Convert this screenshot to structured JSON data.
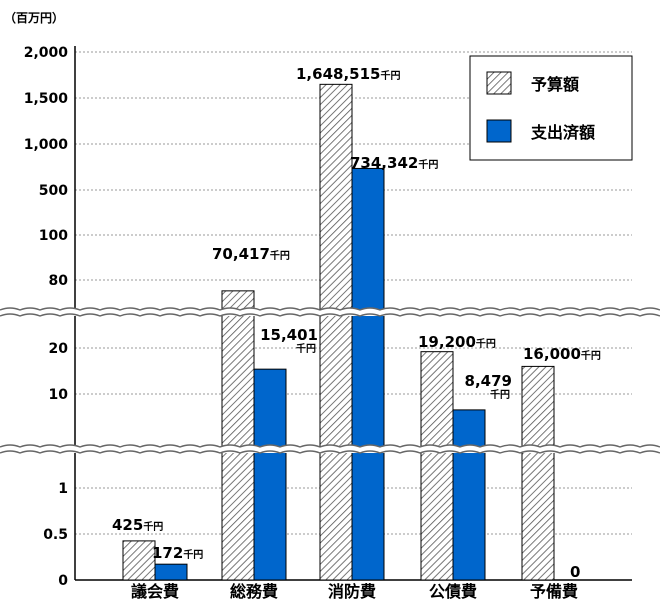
{
  "chart_data": {
    "type": "bar",
    "ylabel": "（百万円）",
    "y_ticks": [
      "2,000",
      "1,500",
      "1,000",
      "500",
      "100",
      "80",
      "20",
      "10",
      "1",
      "0.5",
      "0"
    ],
    "categories": [
      "議会費",
      "総務費",
      "消防費",
      "公債費",
      "予備費"
    ],
    "series": [
      {
        "name": "予算額",
        "values": [
          425,
          70417,
          1648515,
          19200,
          16000
        ]
      },
      {
        "name": "支出済額",
        "values": [
          172,
          15401,
          734342,
          8479,
          0
        ]
      }
    ],
    "value_labels": {
      "budget": [
        "425",
        "70,417",
        "1,648,515",
        "19,200",
        "16,000"
      ],
      "spent": [
        "172",
        "15,401",
        "734,342",
        "8,479",
        "0"
      ]
    },
    "value_unit": "千円",
    "legend": {
      "position": "top-right"
    },
    "grid": true
  },
  "colors": {
    "spent_fill": "#0066cc",
    "budget_fill": "#ffffff",
    "hatch": "#555555",
    "grid": "#999999"
  }
}
